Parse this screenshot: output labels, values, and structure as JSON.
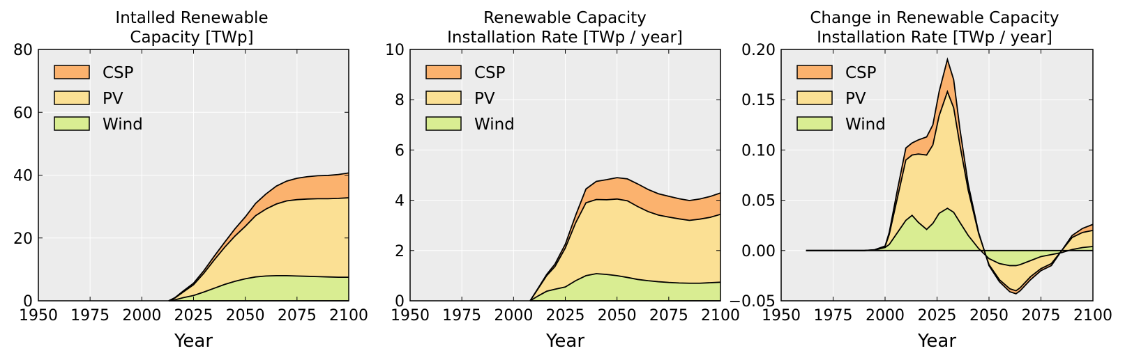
{
  "chart_data": [
    {
      "type": "area",
      "title": "Intalled Renewable\nCapacity [TWp]",
      "xlabel": "Year",
      "ylabel": "",
      "xlim": [
        1950,
        2100
      ],
      "ylim": [
        0,
        80
      ],
      "xticks": [
        "1950",
        "1975",
        "2000",
        "2025",
        "2050",
        "2075",
        "2100"
      ],
      "yticks": [
        "0",
        "20",
        "40",
        "60",
        "80"
      ],
      "grid": true,
      "stacked": true,
      "legend": "top-left",
      "x": [
        2013,
        2016,
        2020,
        2025,
        2030,
        2035,
        2040,
        2045,
        2050,
        2055,
        2060,
        2065,
        2070,
        2075,
        2080,
        2085,
        2090,
        2095,
        2100
      ],
      "series": [
        {
          "name": "Wind",
          "color": "#d9ed92",
          "values": [
            0,
            0.3,
            1.0,
            1.7,
            2.8,
            4.0,
            5.2,
            6.2,
            7.0,
            7.6,
            7.9,
            8.0,
            8.0,
            7.9,
            7.8,
            7.7,
            7.6,
            7.5,
            7.5
          ]
        },
        {
          "name": "PV",
          "color": "#fbe094",
          "values": [
            0,
            0.6,
            1.8,
            3.4,
            6.0,
            9.0,
            11.8,
            14.4,
            16.7,
            19.5,
            21.3,
            22.8,
            23.8,
            24.3,
            24.6,
            24.8,
            24.9,
            25.1,
            25.3
          ]
        },
        {
          "name": "CSP",
          "color": "#fbb26e",
          "values": [
            0,
            0.1,
            0.3,
            0.5,
            0.8,
            1.2,
            1.6,
            2.3,
            3.0,
            3.9,
            4.8,
            5.7,
            6.3,
            6.8,
            7.1,
            7.3,
            7.4,
            7.6,
            7.9
          ]
        }
      ]
    },
    {
      "type": "area",
      "title": "Renewable Capacity\nInstallation Rate [TWp / year]",
      "xlabel": "Year",
      "ylabel": "",
      "xlim": [
        1950,
        2100
      ],
      "ylim": [
        0,
        10
      ],
      "xticks": [
        "1950",
        "1975",
        "2000",
        "2025",
        "2050",
        "2075",
        "2100"
      ],
      "yticks": [
        "0",
        "2",
        "4",
        "6",
        "8",
        "10"
      ],
      "grid": true,
      "stacked": true,
      "legend": "top-left",
      "x": [
        2008,
        2012,
        2016,
        2020,
        2025,
        2030,
        2035,
        2040,
        2045,
        2050,
        2055,
        2060,
        2065,
        2070,
        2075,
        2080,
        2085,
        2090,
        2095,
        2100
      ],
      "series": [
        {
          "name": "Wind",
          "color": "#d9ed92",
          "values": [
            0,
            0.2,
            0.38,
            0.46,
            0.55,
            0.8,
            1.0,
            1.08,
            1.05,
            1.0,
            0.93,
            0.85,
            0.8,
            0.76,
            0.73,
            0.71,
            0.7,
            0.7,
            0.72,
            0.74
          ]
        },
        {
          "name": "PV",
          "color": "#fbe094",
          "values": [
            0,
            0.3,
            0.62,
            0.9,
            1.55,
            2.3,
            2.9,
            2.95,
            2.97,
            3.05,
            3.05,
            2.9,
            2.75,
            2.65,
            2.6,
            2.55,
            2.5,
            2.55,
            2.6,
            2.7
          ]
        },
        {
          "name": "CSP",
          "color": "#fbb26e",
          "values": [
            0,
            0.02,
            0.05,
            0.1,
            0.15,
            0.3,
            0.55,
            0.72,
            0.8,
            0.85,
            0.87,
            0.9,
            0.88,
            0.85,
            0.83,
            0.8,
            0.79,
            0.8,
            0.83,
            0.85
          ]
        }
      ]
    },
    {
      "type": "area",
      "title": "Change in Renewable Capacity\nInstallation Rate [TWp / year]",
      "xlabel": "Year",
      "ylabel": "",
      "xlim": [
        1950,
        2100
      ],
      "ylim": [
        -0.05,
        0.2
      ],
      "xticks": [
        "1950",
        "1975",
        "2000",
        "2025",
        "2050",
        "2075",
        "2100"
      ],
      "yticks": [
        "−0.05",
        "0.00",
        "0.05",
        "0.10",
        "0.15",
        "0.20"
      ],
      "grid": true,
      "stacked": true,
      "legend": "top-left",
      "x": [
        1962,
        1990,
        1995,
        2000,
        2002,
        2006,
        2010,
        2013,
        2016,
        2020,
        2023,
        2026,
        2030,
        2033,
        2036,
        2040,
        2045,
        2050,
        2055,
        2060,
        2063,
        2065,
        2070,
        2075,
        2080,
        2085,
        2090,
        2095,
        2100
      ],
      "series": [
        {
          "name": "Wind",
          "color": "#d9ed92",
          "values": [
            0,
            0,
            0.0005,
            0.003,
            0.006,
            0.018,
            0.03,
            0.035,
            0.028,
            0.021,
            0.027,
            0.037,
            0.042,
            0.038,
            0.028,
            0.015,
            0.002,
            -0.008,
            -0.013,
            -0.015,
            -0.015,
            -0.014,
            -0.01,
            -0.006,
            -0.004,
            -0.002,
            0.001,
            0.003,
            0.004
          ]
        },
        {
          "name": "PV",
          "color": "#fbe094",
          "values": [
            0,
            0,
            0.0002,
            0.001,
            0.01,
            0.035,
            0.06,
            0.06,
            0.068,
            0.074,
            0.078,
            0.097,
            0.116,
            0.104,
            0.077,
            0.045,
            0.015,
            -0.006,
            -0.016,
            -0.023,
            -0.025,
            -0.023,
            -0.016,
            -0.012,
            -0.009,
            0.002,
            0.012,
            0.015,
            0.016
          ]
        },
        {
          "name": "CSP",
          "color": "#fbb26e",
          "values": [
            0,
            0,
            0.0001,
            0.0005,
            0.002,
            0.008,
            0.012,
            0.012,
            0.014,
            0.018,
            0.02,
            0.024,
            0.032,
            0.028,
            0.016,
            0.006,
            0.001,
            -0.001,
            -0.002,
            -0.003,
            -0.003,
            -0.003,
            -0.003,
            -0.002,
            -0.002,
            0,
            0.002,
            0.004,
            0.006
          ]
        }
      ]
    }
  ]
}
